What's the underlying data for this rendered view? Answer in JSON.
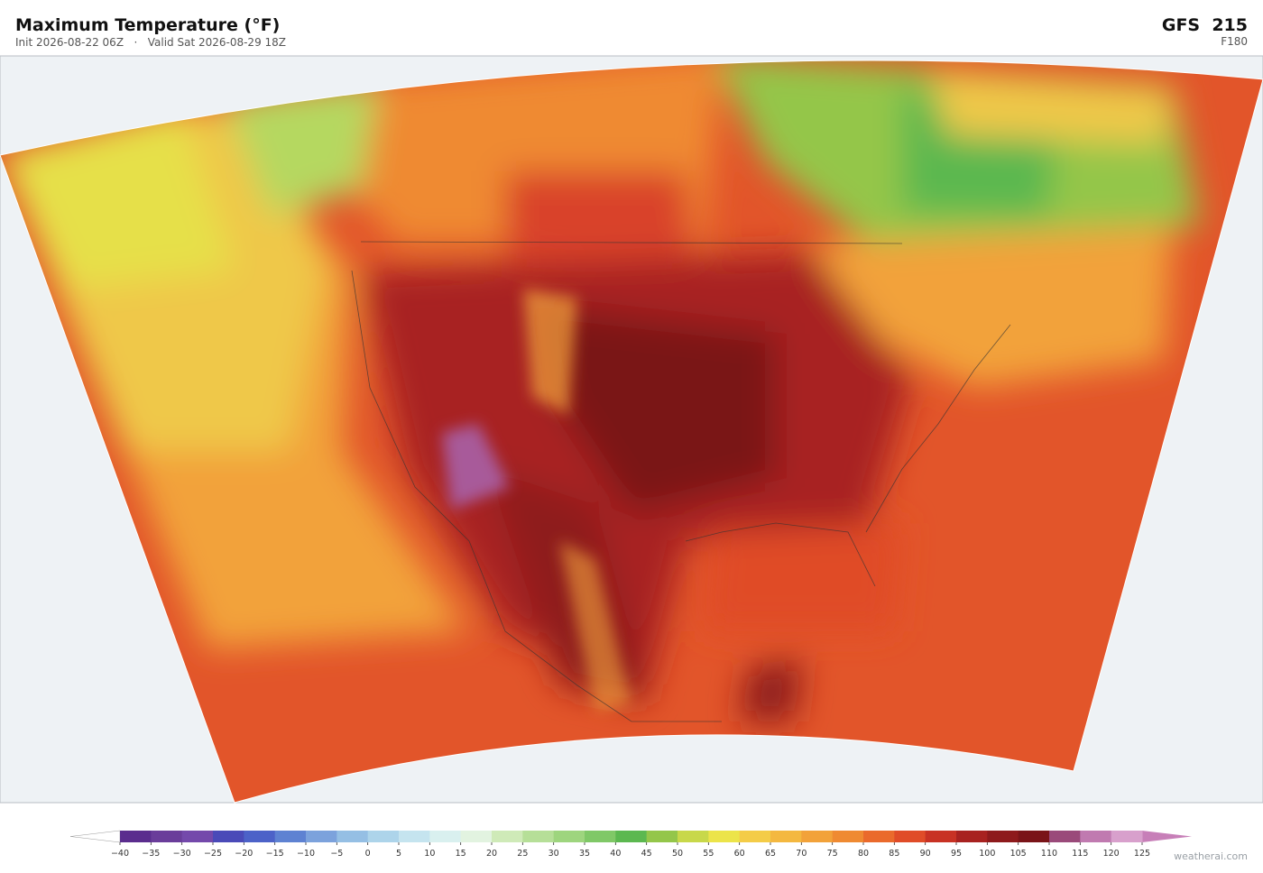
{
  "header": {
    "title": "Maximum Temperature  (°F)",
    "subtitle": "Init 2026-08-22 06Z   ·   Valid Sat 2026-08-29 18Z",
    "model": "GFS  215",
    "forecast_hour": "F180"
  },
  "colorbar": {
    "ticks": [
      {
        "value": -40,
        "label": "−40"
      },
      {
        "value": -35,
        "label": "−35"
      },
      {
        "value": -30,
        "label": "−30"
      },
      {
        "value": -25,
        "label": "−25"
      },
      {
        "value": -20,
        "label": "−20"
      },
      {
        "value": -15,
        "label": "−15"
      },
      {
        "value": -10,
        "label": "−10"
      },
      {
        "value": -5,
        "label": "−5"
      },
      0,
      5,
      10,
      15,
      20,
      25,
      30,
      35,
      40,
      45,
      50,
      55,
      60,
      65,
      70,
      75,
      80,
      85,
      90,
      95,
      100,
      105,
      110,
      115,
      120,
      125
    ],
    "colors": [
      "#5b2d8e",
      "#6a3d9a",
      "#7449ab",
      "#4a4ab8",
      "#4c62c8",
      "#5e82d2",
      "#7ca2dc",
      "#95bfe4",
      "#add4ea",
      "#c5e4ef",
      "#d9f0ef",
      "#e2f3e0",
      "#cfeab8",
      "#b6df98",
      "#9ed57e",
      "#80c867",
      "#5cb850",
      "#94c64a",
      "#c8d84a",
      "#ece44a",
      "#f4cc48",
      "#f4b840",
      "#f2a23a",
      "#ef8a32",
      "#ea6a2c",
      "#e04c28",
      "#c83224",
      "#a82220",
      "#8e1a1c",
      "#7a1418",
      "#9a4a7a",
      "#c07ab0",
      "#d8a0cc"
    ],
    "under_color": "#ffffff",
    "over_color": "#c77fb8"
  },
  "watermark": "weatherai.com"
}
